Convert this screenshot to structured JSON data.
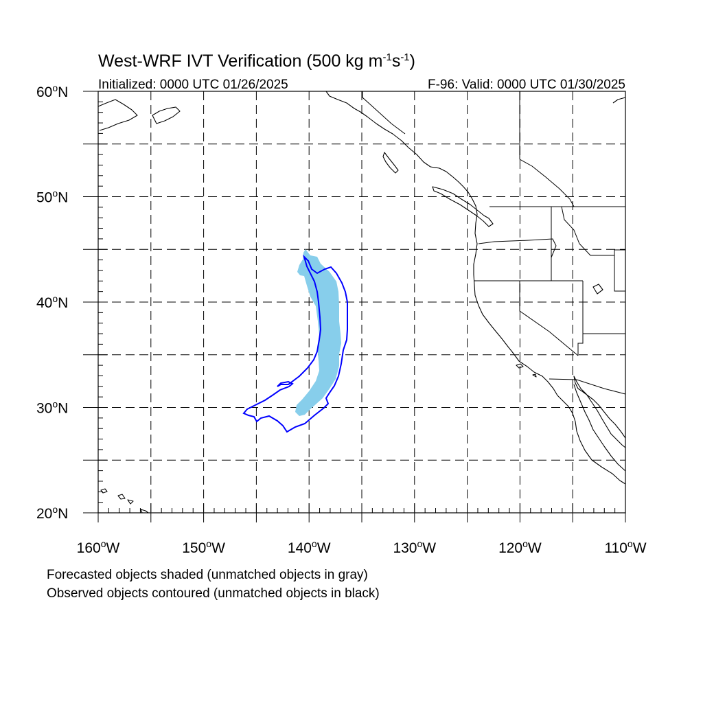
{
  "title": {
    "main": "West-WRF IVT Verification (500 kg m",
    "sup1": "-1",
    "mid": "s",
    "sup2": "-1",
    "end": ")"
  },
  "subtitle": {
    "left": "Initialized: 0000 UTC 01/26/2025",
    "right": "F-96: Valid: 0000 UTC 01/30/2025"
  },
  "axes": {
    "lat_labels": [
      {
        "value": 60,
        "num": "60",
        "hem": "N"
      },
      {
        "value": 50,
        "num": "50",
        "hem": "N"
      },
      {
        "value": 40,
        "num": "40",
        "hem": "N"
      },
      {
        "value": 30,
        "num": "30",
        "hem": "N"
      },
      {
        "value": 20,
        "num": "20",
        "hem": "N"
      }
    ],
    "lon_labels": [
      {
        "value": -160,
        "num": "160",
        "hem": "W"
      },
      {
        "value": -150,
        "num": "150",
        "hem": "W"
      },
      {
        "value": -140,
        "num": "140",
        "hem": "W"
      },
      {
        "value": -130,
        "num": "130",
        "hem": "W"
      },
      {
        "value": -120,
        "num": "120",
        "hem": "W"
      },
      {
        "value": -110,
        "num": "110",
        "hem": "W"
      }
    ],
    "lon_range": [
      -160,
      -110
    ],
    "lat_range": [
      20,
      60
    ],
    "grid": "dashed every 5 degrees"
  },
  "colors": {
    "forecast_fill": "#87ceeb",
    "observed_contour": "#0000ff",
    "coastline": "#000000"
  },
  "objects": {
    "forecast_matched": "shaded light blue object near 140W, 29N-45N",
    "observed_matched": "blue contour object from 146W,30N to 137W,44N"
  },
  "notes": [
    "Forecasted objects shaded (unmatched objects in gray)",
    "Observed objects contoured (unmatched objects in black)"
  ]
}
